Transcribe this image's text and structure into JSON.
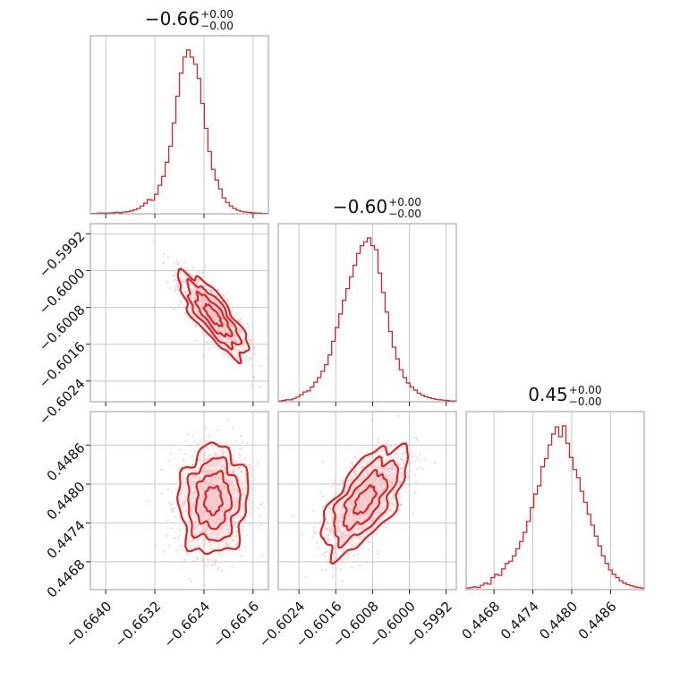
{
  "figure": {
    "type": "corner-plot",
    "color": "#d62728",
    "light_color": "#f7c6c9",
    "sample_color": "#f2a9ad"
  },
  "chart_data": {
    "type": "corner",
    "parameters": [
      {
        "title_value": "−0.66",
        "title_upper": "+0.00",
        "title_lower": "−0.00",
        "range": [
          -0.66425,
          -0.66135
        ],
        "ticks": [
          -0.664,
          -0.6632,
          -0.6624,
          -0.6616
        ],
        "tick_labels": [
          "−0.6640",
          "−0.6632",
          "−0.6624",
          "−0.6616"
        ],
        "mean": -0.66225,
        "sd": 0.00028
      },
      {
        "title_value": "−0.60",
        "title_upper": "+0.00",
        "title_lower": "−0.00",
        "range": [
          -0.60285,
          -0.59898
        ],
        "ticks": [
          -0.6024,
          -0.6016,
          -0.6008,
          -0.6,
          -0.5992
        ],
        "tick_labels": [
          "−0.6024",
          "−0.6016",
          "−0.6008",
          "−0.6000",
          "−0.5992"
        ],
        "mean": -0.60097,
        "sd": 0.00046
      },
      {
        "title_value": "0.45",
        "title_upper": "+0.00",
        "title_lower": "−0.00",
        "range": [
          0.44637,
          0.44912
        ],
        "ticks": [
          0.4468,
          0.4474,
          0.448,
          0.4486
        ],
        "tick_labels": [
          "0.4468",
          "0.4474",
          "0.4480",
          "0.4486"
        ],
        "mean": 0.44775,
        "sd": 0.00042
      }
    ],
    "marginals": [
      {
        "parameter": 0,
        "bins": 50,
        "counts": [
          1,
          1,
          2,
          2,
          2,
          2,
          3,
          4,
          3,
          5,
          6,
          8,
          11,
          15,
          22,
          30,
          40,
          38,
          55,
          80,
          105,
          145,
          190,
          255,
          330,
          395,
          440,
          460,
          440,
          420,
          380,
          310,
          240,
          175,
          125,
          95,
          70,
          45,
          32,
          22,
          15,
          10,
          7,
          5,
          4,
          3,
          2,
          2,
          1,
          1
        ]
      },
      {
        "parameter": 1,
        "bins": 50,
        "counts": [
          2,
          3,
          5,
          5,
          8,
          12,
          18,
          25,
          28,
          38,
          50,
          62,
          78,
          95,
          120,
          155,
          190,
          225,
          260,
          290,
          320,
          350,
          380,
          400,
          410,
          420,
          400,
          390,
          330,
          280,
          230,
          180,
          140,
          110,
          82,
          62,
          48,
          38,
          30,
          22,
          17,
          13,
          10,
          8,
          6,
          5,
          4,
          3,
          2,
          2
        ]
      },
      {
        "parameter": 2,
        "bins": 50,
        "counts": [
          3,
          4,
          5,
          4,
          8,
          12,
          10,
          22,
          28,
          26,
          38,
          48,
          52,
          62,
          75,
          88,
          105,
          125,
          150,
          175,
          190,
          225,
          240,
          265,
          285,
          298,
          280,
          300,
          268,
          242,
          220,
          205,
          180,
          160,
          138,
          118,
          98,
          80,
          62,
          48,
          36,
          28,
          22,
          16,
          12,
          9,
          7,
          5,
          4,
          3
        ]
      }
    ],
    "pairs": [
      {
        "x_param": 0,
        "y_param": 1,
        "correlation": -0.8,
        "samples": 900
      },
      {
        "x_param": 0,
        "y_param": 2,
        "correlation": 0.05,
        "samples": 900
      },
      {
        "x_param": 1,
        "y_param": 2,
        "correlation": 0.65,
        "samples": 900
      }
    ],
    "contour_levels_sigma": [
      0.5,
      1.0,
      1.5,
      2.0
    ],
    "grid": true
  }
}
